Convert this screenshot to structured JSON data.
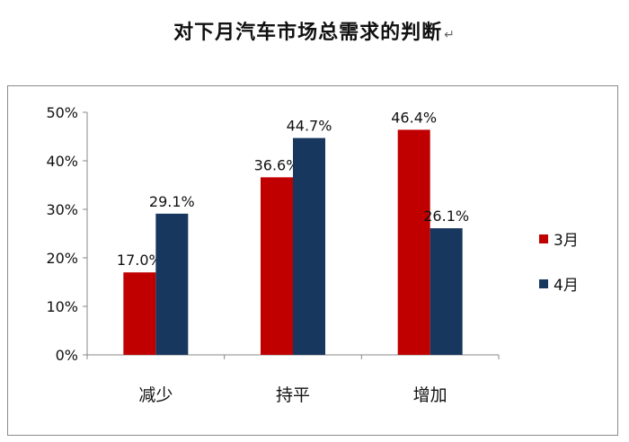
{
  "chart_data": {
    "type": "bar",
    "title": "对下月汽车市场总需求的判断",
    "title_mark": "↵",
    "categories": [
      "减少",
      "持平",
      "增加"
    ],
    "series": [
      {
        "name": "3月",
        "values": [
          17.0,
          36.6,
          46.4
        ],
        "labels": [
          "17.0%",
          "36.6%",
          "46.4%"
        ],
        "color": "#c00000"
      },
      {
        "name": "4月",
        "values": [
          29.1,
          44.7,
          26.1
        ],
        "labels": [
          "29.1%",
          "44.7%",
          "26.1%"
        ],
        "color": "#17375e"
      }
    ],
    "ylim": [
      0,
      50
    ],
    "yticks": [
      0,
      10,
      20,
      30,
      40,
      50
    ],
    "ytick_labels": [
      "0%",
      "10%",
      "20%",
      "30%",
      "40%",
      "50%"
    ],
    "xlabel": "",
    "ylabel": "",
    "grid": false,
    "legend": "right"
  }
}
